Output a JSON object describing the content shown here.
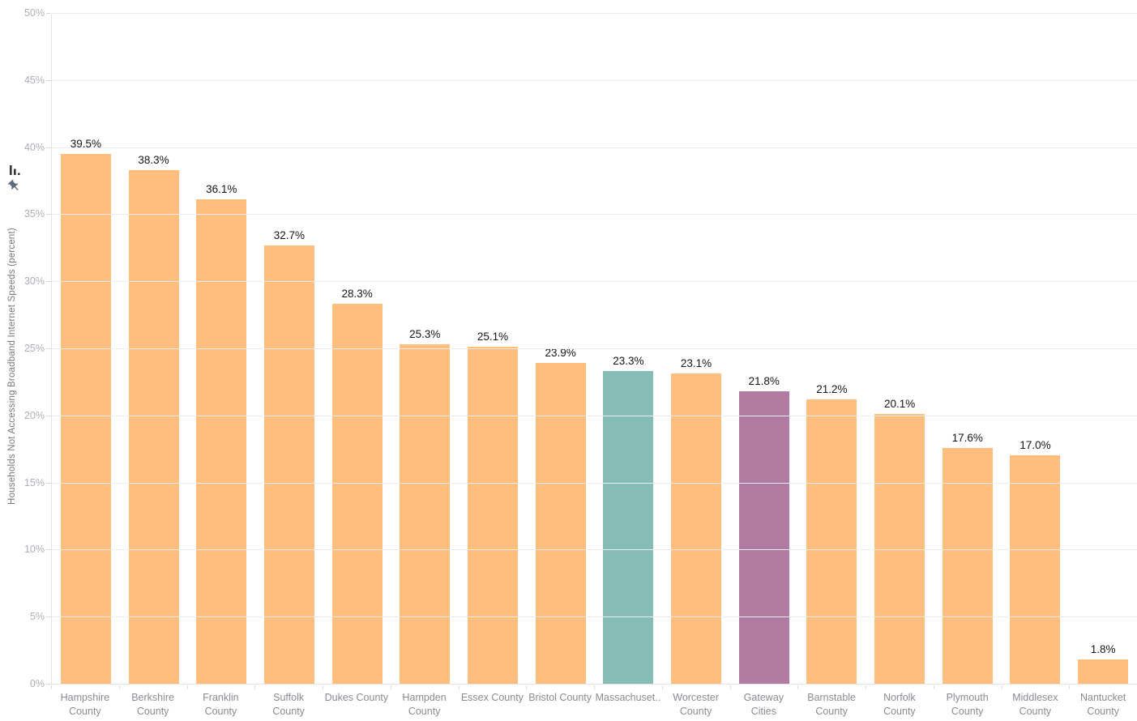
{
  "chart_data": {
    "type": "bar",
    "title": "",
    "xlabel": "",
    "ylabel": "Households Not Accessing Broadband Internet Speeds (percent)",
    "ylim": [
      0,
      50
    ],
    "yticks": [
      "0%",
      "5%",
      "10%",
      "15%",
      "20%",
      "25%",
      "30%",
      "35%",
      "40%",
      "45%",
      "50%"
    ],
    "grid": "horizontal gridlines on, light gray",
    "legend": "none",
    "categories": [
      "Hampshire County",
      "Berkshire County",
      "Franklin County",
      "Suffolk County",
      "Dukes County",
      "Hampden County",
      "Essex County",
      "Bristol County",
      "Massachuset..",
      "Worcester County",
      "Gateway Cities",
      "Barnstable County",
      "Norfolk County",
      "Plymouth County",
      "Middlesex County",
      "Nantucket County"
    ],
    "values": [
      39.5,
      38.3,
      36.1,
      32.7,
      28.3,
      25.3,
      25.1,
      23.9,
      23.3,
      23.1,
      21.8,
      21.2,
      20.1,
      17.6,
      17.0,
      1.8
    ],
    "bars": [
      {
        "category": "Hampshire County",
        "label_lines": [
          "Hampshire",
          "County"
        ],
        "value": 39.5,
        "value_label": "39.5%",
        "color": "#FFBE7D"
      },
      {
        "category": "Berkshire County",
        "label_lines": [
          "Berkshire",
          "County"
        ],
        "value": 38.3,
        "value_label": "38.3%",
        "color": "#FFBE7D"
      },
      {
        "category": "Franklin County",
        "label_lines": [
          "Franklin",
          "County"
        ],
        "value": 36.1,
        "value_label": "36.1%",
        "color": "#FFBE7D"
      },
      {
        "category": "Suffolk County",
        "label_lines": [
          "Suffolk",
          "County"
        ],
        "value": 32.7,
        "value_label": "32.7%",
        "color": "#FFBE7D"
      },
      {
        "category": "Dukes County",
        "label_lines": [
          "Dukes County"
        ],
        "value": 28.3,
        "value_label": "28.3%",
        "color": "#FFBE7D"
      },
      {
        "category": "Hampden County",
        "label_lines": [
          "Hampden",
          "County"
        ],
        "value": 25.3,
        "value_label": "25.3%",
        "color": "#FFBE7D"
      },
      {
        "category": "Essex County",
        "label_lines": [
          "Essex County"
        ],
        "value": 25.1,
        "value_label": "25.1%",
        "color": "#FFBE7D"
      },
      {
        "category": "Bristol County",
        "label_lines": [
          "Bristol County"
        ],
        "value": 23.9,
        "value_label": "23.9%",
        "color": "#FFBE7D"
      },
      {
        "category": "Massachuset..",
        "label_lines": [
          "Massachuset.."
        ],
        "value": 23.3,
        "value_label": "23.3%",
        "color": "#86BCB6"
      },
      {
        "category": "Worcester County",
        "label_lines": [
          "Worcester",
          "County"
        ],
        "value": 23.1,
        "value_label": "23.1%",
        "color": "#FFBE7D"
      },
      {
        "category": "Gateway Cities",
        "label_lines": [
          "Gateway",
          "Cities"
        ],
        "value": 21.8,
        "value_label": "21.8%",
        "color": "#B07AA1"
      },
      {
        "category": "Barnstable County",
        "label_lines": [
          "Barnstable",
          "County"
        ],
        "value": 21.2,
        "value_label": "21.2%",
        "color": "#FFBE7D"
      },
      {
        "category": "Norfolk County",
        "label_lines": [
          "Norfolk",
          "County"
        ],
        "value": 20.1,
        "value_label": "20.1%",
        "color": "#FFBE7D"
      },
      {
        "category": "Plymouth County",
        "label_lines": [
          "Plymouth",
          "County"
        ],
        "value": 17.6,
        "value_label": "17.6%",
        "color": "#FFBE7D"
      },
      {
        "category": "Middlesex County",
        "label_lines": [
          "Middlesex",
          "County"
        ],
        "value": 17.0,
        "value_label": "17.0%",
        "color": "#FFBE7D"
      },
      {
        "category": "Nantucket County",
        "label_lines": [
          "Nantucket",
          "County"
        ],
        "value": 1.8,
        "value_label": "1.8%",
        "color": "#FFBE7D"
      }
    ]
  },
  "colors": {
    "bar_default_orange": "#FFBE7D",
    "bar_highlight_teal": "#86BCB6",
    "bar_highlight_purple": "#B07AA1",
    "gridline": "#ececec",
    "y_tick_label": "#aeaeb6",
    "x_category_label": "#8a8a91",
    "value_label": "#151515",
    "axis_title": "#76767e"
  },
  "icons": {
    "mini_bar_chart": "mini-bar-chart-icon",
    "pin": "pin-icon"
  }
}
